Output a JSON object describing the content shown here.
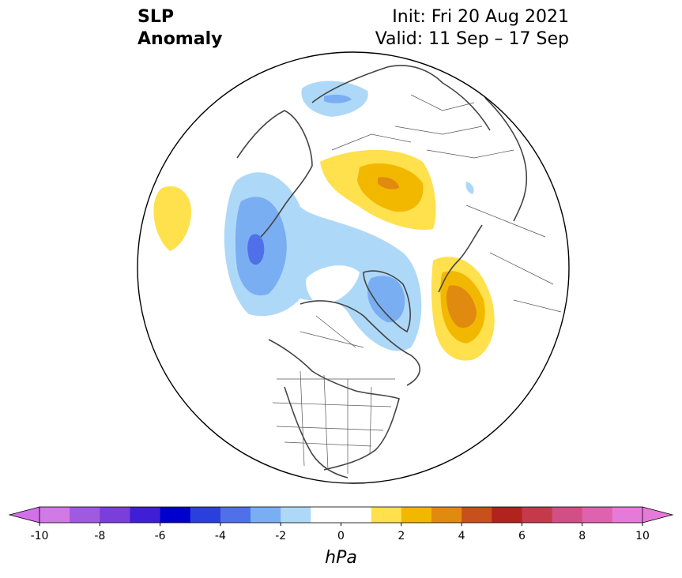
{
  "header": {
    "title_line1": "SLP",
    "title_line2": "Anomaly",
    "init": "Init: Fri 20 Aug 2021",
    "valid": "Valid: 11 Sep – 17 Sep"
  },
  "colorbar": {
    "ticks": [
      "-10",
      "-8",
      "-6",
      "-4",
      "-2",
      "0",
      "2",
      "4",
      "6",
      "8",
      "10"
    ],
    "unit": "hPa",
    "colors": [
      "#d17ae6",
      "#a05adf",
      "#7a3fdb",
      "#3f1fd6",
      "#0000cc",
      "#2b3fdc",
      "#4f70e8",
      "#7aaef2",
      "#aed8f7",
      "#ffffff",
      "#ffffff",
      "#ffe04d",
      "#f2b800",
      "#e08a10",
      "#c8501c",
      "#b2221e",
      "#c43a4a",
      "#d24f86",
      "#de62ad",
      "#e67ad8"
    ],
    "extend_left_color": "#d270e8",
    "extend_right_color": "#e67ad8"
  },
  "map": {
    "projection": "north-polar-stereographic",
    "ocean": "#ffffff",
    "coast_color": "#444444"
  }
}
